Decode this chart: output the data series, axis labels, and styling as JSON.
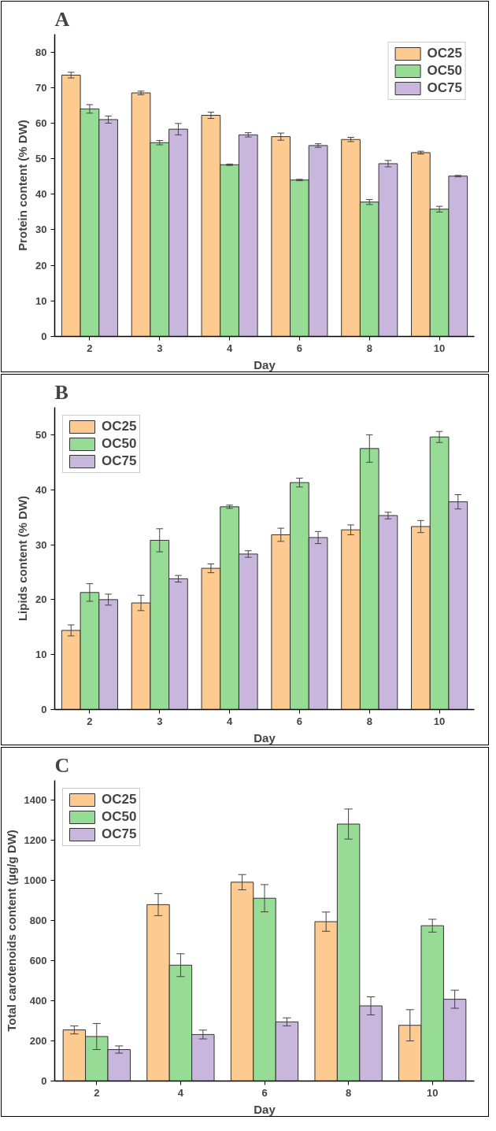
{
  "chart_data": [
    {
      "type": "bar",
      "title": "A",
      "xlabel": "Day",
      "ylabel": "Protein content (% DW)",
      "categories": [
        "2",
        "3",
        "4",
        "6",
        "8",
        "10"
      ],
      "ylim": [
        0,
        85
      ],
      "yticks": [
        0,
        10,
        20,
        30,
        40,
        50,
        60,
        70,
        80
      ],
      "grid": false,
      "legend": "top right",
      "series": [
        {
          "name": "OC25",
          "color": "#fdca8f",
          "values": [
            73.5,
            68.5,
            62.2,
            56.2,
            55.4,
            51.7
          ],
          "errors": [
            0.8,
            0.5,
            0.9,
            1.0,
            0.6,
            0.4
          ]
        },
        {
          "name": "OC50",
          "color": "#97dc95",
          "values": [
            64.0,
            54.5,
            48.3,
            44.0,
            37.8,
            35.8
          ],
          "errors": [
            1.2,
            0.6,
            0.2,
            0.2,
            0.7,
            0.8
          ]
        },
        {
          "name": "OC75",
          "color": "#c9b6dd",
          "values": [
            61.0,
            58.3,
            56.7,
            53.7,
            48.6,
            45.1
          ],
          "errors": [
            1.0,
            1.6,
            0.6,
            0.5,
            0.9,
            0.2
          ]
        }
      ]
    },
    {
      "type": "bar",
      "title": "B",
      "xlabel": "Day",
      "ylabel": "Lipids content (% DW)",
      "categories": [
        "2",
        "3",
        "4",
        "6",
        "8",
        "10"
      ],
      "ylim": [
        0,
        55
      ],
      "yticks": [
        0,
        10,
        20,
        30,
        40,
        50
      ],
      "grid": false,
      "legend": "top left",
      "series": [
        {
          "name": "OC25",
          "color": "#fdca8f",
          "values": [
            14.4,
            19.4,
            25.7,
            31.8,
            32.7,
            33.3
          ],
          "errors": [
            1.0,
            1.4,
            0.8,
            1.2,
            0.9,
            1.1
          ]
        },
        {
          "name": "OC50",
          "color": "#97dc95",
          "values": [
            21.3,
            30.8,
            36.9,
            41.3,
            47.5,
            49.6
          ],
          "errors": [
            1.6,
            2.1,
            0.3,
            0.8,
            2.5,
            1.0
          ]
        },
        {
          "name": "OC75",
          "color": "#c9b6dd",
          "values": [
            20.0,
            23.8,
            28.3,
            31.3,
            35.3,
            37.8
          ],
          "errors": [
            1.0,
            0.6,
            0.6,
            1.1,
            0.6,
            1.3
          ]
        }
      ]
    },
    {
      "type": "bar",
      "title": "C",
      "xlabel": "Day",
      "ylabel": "Total carotenoids content (µg/g DW)",
      "categories": [
        "2",
        "4",
        "6",
        "8",
        "10"
      ],
      "ylim": [
        0,
        1500
      ],
      "yticks": [
        0,
        200,
        400,
        600,
        800,
        1000,
        1200,
        1400
      ],
      "grid": false,
      "legend": "top left",
      "series": [
        {
          "name": "OC25",
          "color": "#fdca8f",
          "values": [
            255,
            880,
            992,
            795,
            278
          ],
          "errors": [
            20,
            55,
            38,
            48,
            78
          ]
        },
        {
          "name": "OC50",
          "color": "#97dc95",
          "values": [
            222,
            578,
            912,
            1282,
            775
          ],
          "errors": [
            65,
            57,
            68,
            75,
            32
          ]
        },
        {
          "name": "OC75",
          "color": "#c9b6dd",
          "values": [
            157,
            232,
            295,
            375,
            408
          ],
          "errors": [
            18,
            22,
            20,
            45,
            45
          ]
        }
      ]
    }
  ]
}
